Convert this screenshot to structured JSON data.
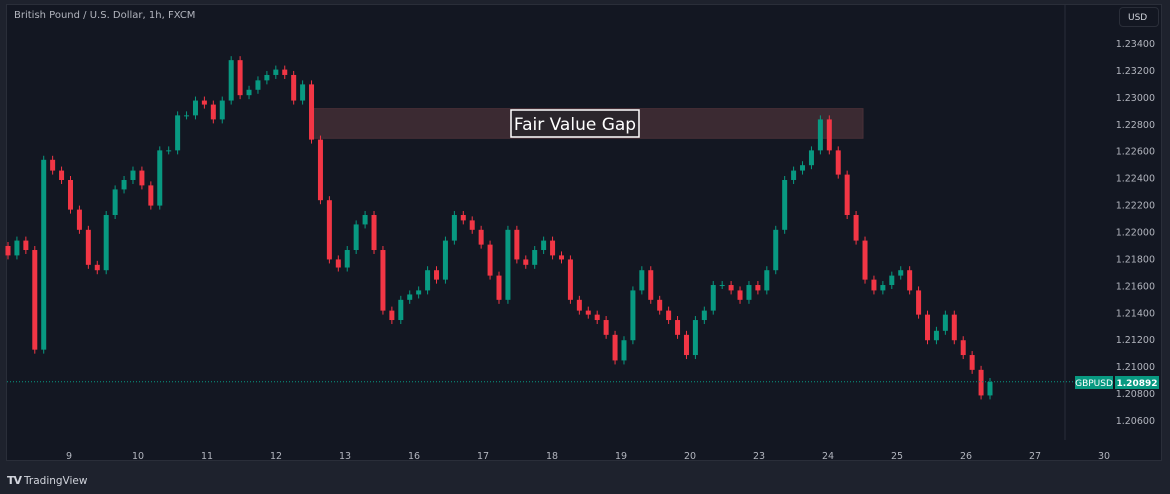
{
  "header": {
    "title": "British Pound / U.S. Dollar, 1h, FXCM",
    "currency_button": "USD"
  },
  "footer": {
    "brand": "TradingView"
  },
  "colors": {
    "up": "#089981",
    "down": "#f23645",
    "background": "#131722",
    "fvg_fill": "#3b2a32",
    "price_line": "#089981"
  },
  "chart_data": {
    "type": "candlestick",
    "title": "British Pound / U.S. Dollar, 1h, FXCM",
    "first_open": 1.219,
    "closes": [
      1.2183,
      1.2194,
      1.2187,
      1.2113,
      1.2254,
      1.2246,
      1.2239,
      1.2217,
      1.2202,
      1.2176,
      1.2172,
      1.2213,
      1.2232,
      1.2239,
      1.2246,
      1.2235,
      1.222,
      1.2261,
      1.2261,
      1.2287,
      1.2287,
      1.2298,
      1.2295,
      1.2284,
      1.2298,
      1.2328,
      1.2302,
      1.2306,
      1.2313,
      1.2317,
      1.2321,
      1.2317,
      1.2298,
      1.231,
      1.2269,
      1.2224,
      1.218,
      1.2174,
      1.2187,
      1.2206,
      1.2213,
      1.2187,
      1.2142,
      1.2135,
      1.215,
      1.2154,
      1.2157,
      1.2172,
      1.2165,
      1.2194,
      1.2213,
      1.2209,
      1.2202,
      1.2191,
      1.2168,
      1.215,
      1.2202,
      1.218,
      1.2176,
      1.2187,
      1.2194,
      1.2183,
      1.218,
      1.215,
      1.2142,
      1.2139,
      1.2135,
      1.2124,
      1.2105,
      1.212,
      1.2157,
      1.2172,
      1.215,
      1.2142,
      1.2135,
      1.2124,
      1.2109,
      1.2135,
      1.2142,
      1.2161,
      1.2161,
      1.2157,
      1.215,
      1.2161,
      1.2157,
      1.2172,
      1.2202,
      1.2239,
      1.2246,
      1.225,
      1.2261,
      1.2284,
      1.2261,
      1.2243,
      1.2213,
      1.2194,
      1.2165,
      1.2157,
      1.2161,
      1.2168,
      1.2172,
      1.2157,
      1.2139,
      1.212,
      1.2127,
      1.2139,
      1.212,
      1.2109,
      1.2098,
      1.2079,
      1.2089
    ],
    "y_ticks": [
      "1.23400",
      "1.23200",
      "1.23000",
      "1.22800",
      "1.22600",
      "1.22400",
      "1.22200",
      "1.22000",
      "1.21800",
      "1.21600",
      "1.21400",
      "1.21200",
      "1.21000",
      "1.20800",
      "1.20600"
    ],
    "x_ticks": [
      "9",
      "10",
      "11",
      "12",
      "13",
      "16",
      "17",
      "18",
      "19",
      "20",
      "23",
      "24",
      "25",
      "26",
      "27",
      "30"
    ],
    "ylim": [
      1.2046,
      1.237
    ],
    "annotation": {
      "label": "Fair Value Gap",
      "price_top": 1.2292,
      "price_bottom": 1.227
    },
    "last_price": {
      "symbol": "GBPUSD",
      "value": "1.20892",
      "price": 1.20892
    }
  }
}
